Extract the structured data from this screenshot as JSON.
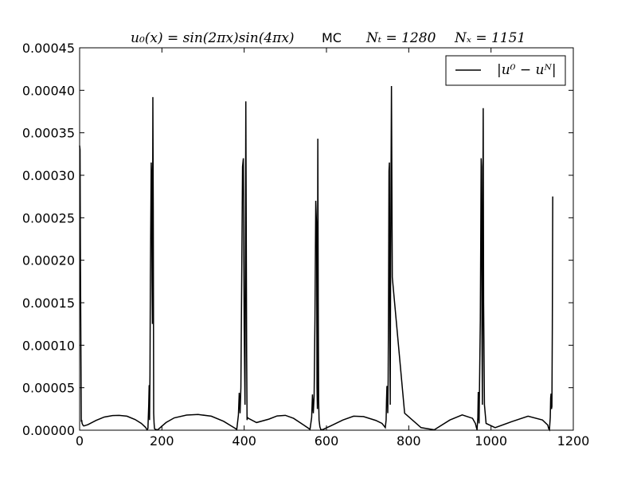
{
  "chart_data": {
    "type": "line",
    "title": {
      "formula": "u₀(x) = sin(2πx)sin(4πx)",
      "method": "MC",
      "nt": "Nₜ = 1280",
      "nx": "Nₓ = 1151"
    },
    "xlabel": "",
    "ylabel": "",
    "xlim": [
      0,
      1200
    ],
    "ylim": [
      0,
      0.00045
    ],
    "xticks": [
      0,
      200,
      400,
      600,
      800,
      1000,
      1200
    ],
    "xtick_labels": [
      "0",
      "200",
      "400",
      "600",
      "800",
      "1000",
      "1200"
    ],
    "yticks": [
      0,
      5e-05,
      0.0001,
      0.00015,
      0.0002,
      0.00025,
      0.0003,
      0.00035,
      0.0004,
      0.00045
    ],
    "ytick_labels": [
      "0.00000",
      "0.00005",
      "0.00010",
      "0.00015",
      "0.00020",
      "0.00025",
      "0.00030",
      "0.00035",
      "0.00040",
      "0.00045"
    ],
    "grid": false,
    "legend_position": "top-right",
    "series": [
      {
        "name": "|u⁰ − uᴺ|",
        "color": "#000000",
        "x": [
          0,
          1,
          2,
          3,
          4,
          5,
          6,
          8,
          10,
          20,
          40,
          60,
          80,
          96,
          115,
          135,
          150,
          160,
          164,
          166,
          168,
          169,
          170,
          171,
          172,
          174,
          175,
          176,
          177,
          178,
          179,
          180,
          181,
          182,
          184,
          190,
          210,
          230,
          260,
          288,
          320,
          350,
          372,
          382,
          386,
          388,
          390,
          392,
          394,
          396,
          398,
          400,
          402,
          404,
          406,
          407,
          408,
          410,
          430,
          460,
          480,
          500,
          520,
          545,
          560,
          564,
          566,
          568,
          570,
          572,
          574,
          576,
          577,
          578,
          579,
          580,
          581,
          582,
          583,
          584,
          586,
          590,
          610,
          640,
          666,
          690,
          720,
          735,
          740,
          743,
          745,
          746,
          747,
          748,
          749,
          750,
          751,
          752,
          753,
          754,
          755,
          756,
          758,
          760,
          790,
          830,
          862,
          900,
          930,
          955,
          962,
          964,
          966,
          968,
          969,
          970,
          971,
          972,
          974,
          975,
          976,
          977,
          978,
          979,
          980,
          981,
          982,
          984,
          988,
          1010,
          1050,
          1090,
          1125,
          1138,
          1140,
          1142,
          1144,
          1145,
          1146,
          1147,
          1148,
          1149,
          1150
        ],
        "y": [
          0.000335,
          0.00033,
          0.0002,
          0.000105,
          1e-05,
          1.2e-05,
          8e-06,
          6e-06,
          5e-06,
          6.5e-06,
          1.15e-05,
          1.55e-05,
          1.72e-05,
          1.75e-05,
          1.65e-05,
          1.25e-05,
          8e-06,
          3.5e-06,
          5e-07,
          2e-06,
          3e-05,
          5.3e-05,
          1.2e-05,
          6.5e-05,
          0.00018,
          0.000315,
          0.0003,
          0.000175,
          0.000125,
          0.000392,
          0.00026,
          2e-05,
          8e-06,
          2e-06,
          1e-06,
          5e-07,
          9e-06,
          1.45e-05,
          1.78e-05,
          1.85e-05,
          1.65e-05,
          1.05e-05,
          4e-06,
          1e-06,
          1.8e-05,
          4.4e-05,
          2e-05,
          5e-05,
          0.00018,
          0.00031,
          0.00032,
          0.00012,
          3e-05,
          0.000387,
          9e-05,
          1.2e-05,
          1.5e-05,
          1.4e-05,
          9e-06,
          1.3e-05,
          1.68e-05,
          1.75e-05,
          1.4e-05,
          6e-06,
          1e-06,
          1.5e-05,
          4.2e-05,
          2e-05,
          4e-05,
          0.00013,
          0.00027,
          0.00024,
          5e-05,
          2.5e-05,
          0.000343,
          0.00015,
          3.5e-05,
          1.2e-05,
          8e-06,
          4e-06,
          1e-06,
          5e-07,
          5e-06,
          1.2e-05,
          1.65e-05,
          1.6e-05,
          1.15e-05,
          8e-06,
          5e-06,
          3e-06,
          1.2e-05,
          3.5e-05,
          5.2e-05,
          4.5e-05,
          2e-05,
          6e-05,
          0.00016,
          0.000305,
          0.000315,
          0.00012,
          3e-05,
          0.0002,
          0.000405,
          0.00018,
          2e-05,
          3e-06,
          5e-07,
          1.2e-05,
          1.8e-05,
          1.4e-05,
          8e-06,
          4e-06,
          5e-07,
          1.5e-05,
          4.5e-05,
          2e-05,
          8e-06,
          5e-05,
          0.00013,
          0.00022,
          0.00032,
          0.00031,
          0.00012,
          3e-05,
          0.00024,
          0.000379,
          0.00015,
          3e-05,
          8e-06,
          3e-06,
          1e-05,
          1.65e-05,
          1.2e-05,
          6e-06,
          2e-06,
          5e-07,
          1.5e-05,
          3.8e-05,
          4.3e-05,
          2.5e-05,
          2.8e-05,
          0.00012,
          0.000275
        ]
      }
    ]
  }
}
